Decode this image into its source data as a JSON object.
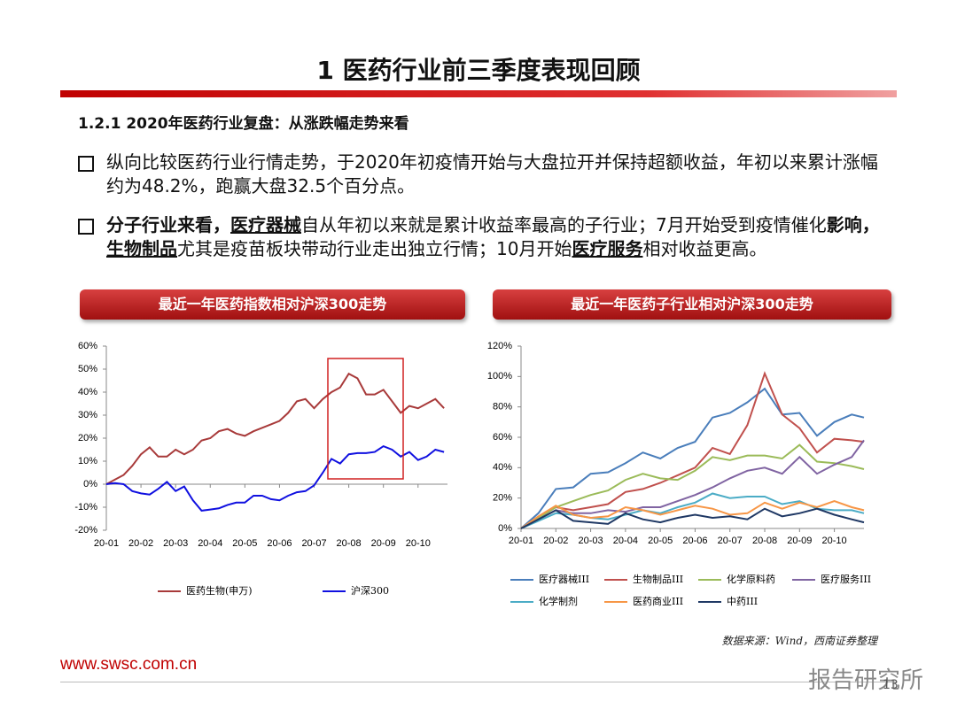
{
  "header": {
    "title": "1 医药行业前三季度表现回顾"
  },
  "section_title": "1.2.1 2020年医药行业复盘：从涨跌幅走势来看",
  "bullets": [
    {
      "segments": [
        {
          "text": "纵向比较医药行业行情走势，于2020年初疫情开始与大盘拉开并保持超额收益，年初以来累计涨幅约为48.2%，跑赢大盘32.5个百分点。"
        }
      ]
    },
    {
      "segments": [
        {
          "text": "分子行业来看，",
          "bold": true
        },
        {
          "text": "医疗器械",
          "bold": true,
          "underline": true
        },
        {
          "text": "自从年初以来就是累计收益率最高的子行业；7月开始受到疫情催化"
        },
        {
          "text": "影响，",
          "bold": true
        },
        {
          "text": "生物制品",
          "bold": true,
          "underline": true
        },
        {
          "text": "尤其是疫苗板块带动行业走出独立行情；10月开始"
        },
        {
          "text": "医疗服务",
          "bold": true,
          "underline": true
        },
        {
          "text": "相对收益更高。"
        }
      ]
    }
  ],
  "chart_data": [
    {
      "type": "line",
      "title": "最近一年医药指数相对沪深300走势",
      "grid": false,
      "legend": "bottom",
      "x": [
        0,
        0.25,
        0.5,
        0.75,
        1,
        1.25,
        1.5,
        1.75,
        2,
        2.25,
        2.5,
        2.75,
        3,
        3.25,
        3.5,
        3.75,
        4,
        4.25,
        4.5,
        4.75,
        5,
        5.25,
        5.5,
        5.75,
        6,
        6.25,
        6.5,
        6.75,
        7,
        7.25,
        7.5,
        7.75,
        8,
        8.25,
        8.5,
        8.75,
        9,
        9.25,
        9.5,
        9.75
      ],
      "xlim": [
        0,
        9.85
      ],
      "xticks": [
        {
          "value": 0,
          "label": "20-01"
        },
        {
          "value": 1,
          "label": "20-02"
        },
        {
          "value": 2,
          "label": "20-03"
        },
        {
          "value": 3,
          "label": "20-04"
        },
        {
          "value": 4,
          "label": "20-05"
        },
        {
          "value": 5,
          "label": "20-06"
        },
        {
          "value": 6,
          "label": "20-07"
        },
        {
          "value": 7,
          "label": "20-08"
        },
        {
          "value": 8,
          "label": "20-09"
        },
        {
          "value": 9,
          "label": "20-10"
        }
      ],
      "ylim": [
        -20,
        60
      ],
      "yticks": [
        {
          "value": -20,
          "label": "-20%"
        },
        {
          "value": -10,
          "label": "-10%"
        },
        {
          "value": 0,
          "label": "0%"
        },
        {
          "value": 10,
          "label": "10%"
        },
        {
          "value": 20,
          "label": "20%"
        },
        {
          "value": 30,
          "label": "30%"
        },
        {
          "value": 40,
          "label": "40%"
        },
        {
          "value": 50,
          "label": "50%"
        },
        {
          "value": 60,
          "label": "60%"
        }
      ],
      "series": [
        {
          "name": "医药生物(申万)",
          "color": "#a83a3a",
          "values": [
            0,
            2,
            4,
            8,
            13,
            16,
            12,
            12,
            15,
            13,
            15,
            19,
            20,
            23,
            24,
            22,
            21,
            23,
            24.5,
            26,
            27.5,
            31,
            36,
            37,
            33,
            37,
            40,
            42,
            48,
            46,
            39,
            39,
            41,
            36,
            31,
            34,
            33,
            35,
            37,
            33
          ]
        },
        {
          "name": "沪深300",
          "color": "#1010e0",
          "values": [
            0,
            0.5,
            0,
            -3,
            -4,
            -4.5,
            -2,
            1,
            -3,
            -1,
            -7,
            -11.5,
            -11,
            -10.5,
            -9,
            -8,
            -8,
            -5,
            -5,
            -6.5,
            -7,
            -5,
            -3.5,
            -3,
            -0.5,
            5,
            11,
            9,
            13,
            13.5,
            13.5,
            14,
            16.5,
            15,
            12,
            14,
            10.5,
            12,
            15,
            14
          ]
        }
      ]
    },
    {
      "type": "line",
      "title": "最近一年医药子行业相对沪深300走势",
      "grid": false,
      "legend": "bottom",
      "x": [
        0,
        0.5,
        1,
        1.5,
        2,
        2.5,
        3,
        3.5,
        4,
        4.5,
        5,
        5.5,
        6,
        6.5,
        7,
        7.5,
        8,
        8.5,
        9,
        9.5,
        9.85
      ],
      "xlim": [
        0,
        9.85
      ],
      "xticks": [
        {
          "value": 0,
          "label": "20-01"
        },
        {
          "value": 1,
          "label": "20-02"
        },
        {
          "value": 2,
          "label": "20-03"
        },
        {
          "value": 3,
          "label": "20-04"
        },
        {
          "value": 4,
          "label": "20-05"
        },
        {
          "value": 5,
          "label": "20-06"
        },
        {
          "value": 6,
          "label": "20-07"
        },
        {
          "value": 7,
          "label": "20-08"
        },
        {
          "value": 8,
          "label": "20-09"
        },
        {
          "value": 9,
          "label": "20-10"
        }
      ],
      "ylim": [
        0,
        120
      ],
      "yticks": [
        {
          "value": 0,
          "label": "0%"
        },
        {
          "value": 20,
          "label": "20%"
        },
        {
          "value": 40,
          "label": "40%"
        },
        {
          "value": 60,
          "label": "60%"
        },
        {
          "value": 80,
          "label": "80%"
        },
        {
          "value": 100,
          "label": "100%"
        },
        {
          "value": 120,
          "label": "120%"
        }
      ],
      "series": [
        {
          "name": "医疗器械III",
          "color": "#4a7ebb",
          "values": [
            0,
            10,
            26,
            27,
            36,
            37,
            43,
            50,
            46,
            53,
            57,
            73,
            76,
            83,
            92,
            75,
            76,
            61,
            70,
            75,
            73
          ]
        },
        {
          "name": "生物制品III",
          "color": "#c0504d",
          "values": [
            0,
            7,
            14,
            12,
            14,
            16,
            24,
            26,
            30,
            35,
            40,
            53,
            49,
            68,
            102,
            75,
            66,
            50,
            59,
            58,
            57
          ]
        },
        {
          "name": "化学原料药",
          "color": "#9bbb59",
          "values": [
            0,
            7,
            14,
            18,
            22,
            25,
            32,
            36,
            33,
            32,
            38,
            47,
            45,
            48,
            48,
            46,
            55,
            44,
            43,
            41,
            39
          ]
        },
        {
          "name": "医疗服务III",
          "color": "#8064a2",
          "values": [
            0,
            6,
            12,
            10,
            10,
            12,
            11,
            14,
            14,
            18,
            22,
            27,
            33,
            38,
            40,
            36,
            47,
            36,
            42,
            47,
            58
          ]
        },
        {
          "name": "化学制剂",
          "color": "#4bacc6",
          "values": [
            0,
            5,
            10,
            9,
            7,
            6,
            9,
            12,
            10,
            14,
            17,
            23,
            20,
            21,
            21,
            16,
            18,
            13,
            12,
            12,
            10
          ]
        },
        {
          "name": "医药商业III",
          "color": "#f79646",
          "values": [
            0,
            8,
            15,
            9,
            7,
            8,
            14,
            12,
            9,
            12,
            15,
            13,
            9,
            10,
            17,
            13,
            17,
            14,
            18,
            14,
            12
          ]
        },
        {
          "name": "中药III",
          "color": "#1f3864",
          "values": [
            0,
            6,
            12,
            5,
            4,
            3,
            10,
            6,
            4,
            7,
            9,
            7,
            8,
            6,
            13,
            8,
            10,
            13,
            9,
            6,
            4
          ]
        }
      ]
    }
  ],
  "source": "数据来源：Wind，西南证券整理",
  "footer": {
    "url": "www.swsc.com.cn",
    "watermark": "报告研究所",
    "page": "13"
  }
}
